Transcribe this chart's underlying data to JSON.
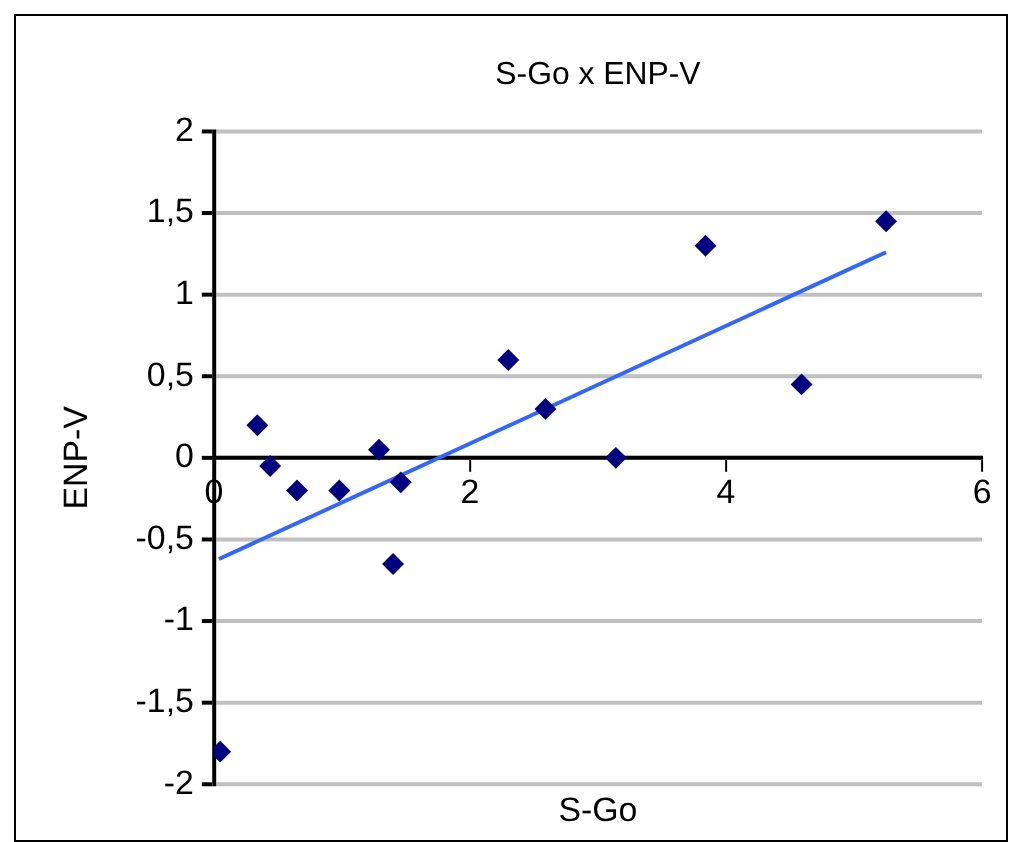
{
  "chart_data": {
    "type": "scatter",
    "title": "S-Go x ENP-V",
    "xlabel": "S-Go",
    "ylabel": "ENP-V",
    "xlim": [
      0,
      6
    ],
    "xticks": [
      0,
      2,
      4,
      6
    ],
    "ylim": [
      -2,
      2
    ],
    "yticks": [
      {
        "value": -2,
        "label": "-2"
      },
      {
        "value": -1.5,
        "label": "-1,5"
      },
      {
        "value": -1,
        "label": "-1"
      },
      {
        "value": -0.5,
        "label": "-0,5"
      },
      0,
      {
        "value": 0.5,
        "label": "0,5"
      },
      1,
      {
        "value": 1.5,
        "label": "1,5"
      },
      2
    ],
    "grid": "y",
    "marker": "diamond",
    "series": [
      {
        "color": "#000080",
        "x": [
          0.05,
          0.34,
          0.44,
          0.65,
          0.98,
          1.29,
          1.4,
          1.46,
          2.3,
          2.59,
          3.14,
          3.84,
          4.59,
          5.25
        ],
        "values": [
          -1.8,
          0.2,
          -0.05,
          -0.2,
          -0.2,
          0.05,
          -0.65,
          -0.15,
          0.6,
          0.3,
          0,
          1.3,
          0.45,
          1.45
        ]
      },
      {
        "type": "line",
        "color": "#3366ff",
        "marker": "none",
        "x": [
          0.04,
          5.25
        ],
        "values": [
          -0.62,
          1.26
        ]
      }
    ]
  }
}
